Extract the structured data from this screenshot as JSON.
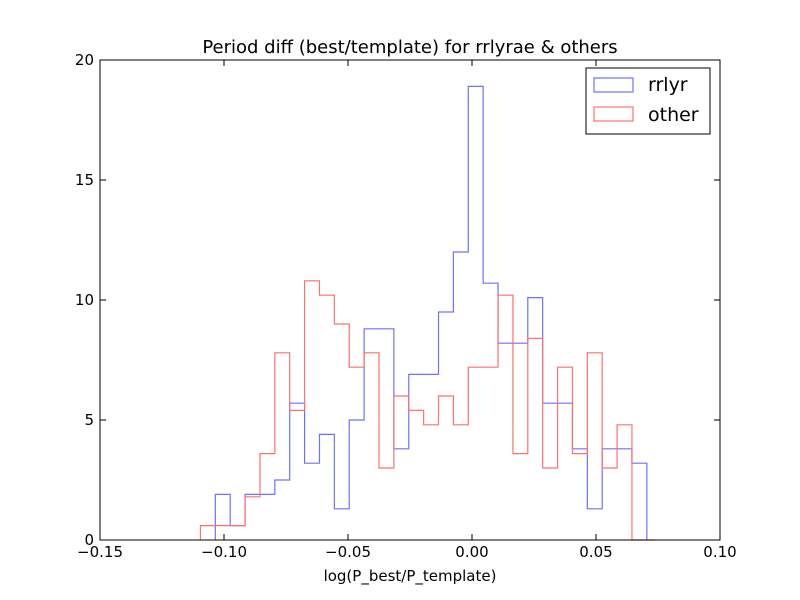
{
  "chart_data": {
    "type": "histogram",
    "title": "Period diff (best/template) for rrlyrae & others",
    "xlabel": "log(P_best/P_template)",
    "ylabel": "",
    "xlim": [
      -0.15,
      0.1
    ],
    "ylim": [
      0,
      20
    ],
    "xticks": [
      "−0.15",
      "−0.10",
      "−0.05",
      "0.00",
      "0.05",
      "0.10"
    ],
    "yticks": [
      "0",
      "5",
      "10",
      "15",
      "20"
    ],
    "grid": false,
    "legend_position": "top-right",
    "series": [
      {
        "name": "rrlyr",
        "color": "#7070ff",
        "bin_edges": [
          -0.1035,
          -0.0975,
          -0.0915,
          -0.0795,
          -0.0735,
          -0.0675,
          -0.0615,
          -0.0555,
          -0.0495,
          -0.0435,
          -0.0315,
          -0.0255,
          -0.0135,
          -0.0075,
          -0.0015,
          0.0045,
          0.0105,
          0.0225,
          0.0285,
          0.0405,
          0.0465,
          0.0525,
          0.0645,
          0.0705
        ],
        "values": [
          1.9,
          0.6,
          1.9,
          2.5,
          5.7,
          3.2,
          4.4,
          1.3,
          5.0,
          8.8,
          3.8,
          6.9,
          9.5,
          12.0,
          18.9,
          10.7,
          8.2,
          10.1,
          5.7,
          3.8,
          1.3,
          3.8,
          3.2
        ]
      },
      {
        "name": "other",
        "color": "#ff7070",
        "bin_edges": [
          -0.1095,
          -0.0975,
          -0.0915,
          -0.0855,
          -0.0795,
          -0.0735,
          -0.0675,
          -0.0615,
          -0.0555,
          -0.0495,
          -0.0435,
          -0.0375,
          -0.0315,
          -0.0255,
          -0.0195,
          -0.0135,
          -0.0075,
          -0.0015,
          0.0105,
          0.0165,
          0.0225,
          0.0285,
          0.0345,
          0.0405,
          0.0465,
          0.0525,
          0.0585,
          0.0645,
          0.0735
        ],
        "values": [
          0.6,
          0.6,
          1.8,
          3.6,
          7.8,
          5.4,
          10.8,
          10.2,
          9.0,
          7.2,
          7.8,
          3.0,
          6.0,
          5.4,
          4.8,
          6.0,
          4.8,
          7.2,
          10.2,
          3.6,
          8.4,
          3.0,
          7.2,
          3.6,
          7.8,
          3.0,
          4.8,
          0.0
        ]
      }
    ]
  }
}
